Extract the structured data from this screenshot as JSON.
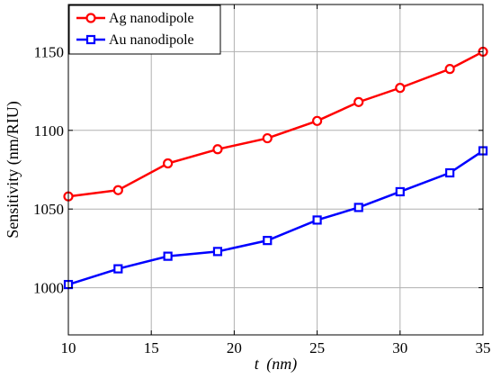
{
  "chart_data": {
    "type": "line",
    "xlabel_var": "t",
    "xlabel_unit": "(nm)",
    "ylabel": "Sensitivity (nm/RIU)",
    "xlim": [
      10,
      35
    ],
    "ylim": [
      970,
      1180
    ],
    "xticks": [
      10,
      15,
      20,
      25,
      30,
      35
    ],
    "yticks": [
      1000,
      1050,
      1100,
      1150
    ],
    "grid": true,
    "legend_placement": "top-left",
    "series": [
      {
        "name": "Ag nanodipole",
        "color": "#ff0000",
        "marker": "circle",
        "points": [
          [
            10,
            1058
          ],
          [
            13,
            1062
          ],
          [
            16,
            1079
          ],
          [
            19,
            1088
          ],
          [
            22,
            1095
          ],
          [
            25,
            1106
          ],
          [
            27.5,
            1118
          ],
          [
            30,
            1127
          ],
          [
            33,
            1139
          ],
          [
            35,
            1150
          ]
        ]
      },
      {
        "name": "Au nanodipole",
        "color": "#0000ff",
        "marker": "square",
        "points": [
          [
            10,
            1002
          ],
          [
            13,
            1012
          ],
          [
            16,
            1020
          ],
          [
            19,
            1023
          ],
          [
            22,
            1030
          ],
          [
            25,
            1043
          ],
          [
            27.5,
            1051
          ],
          [
            30,
            1061
          ],
          [
            33,
            1073
          ],
          [
            35,
            1087
          ]
        ]
      }
    ]
  }
}
